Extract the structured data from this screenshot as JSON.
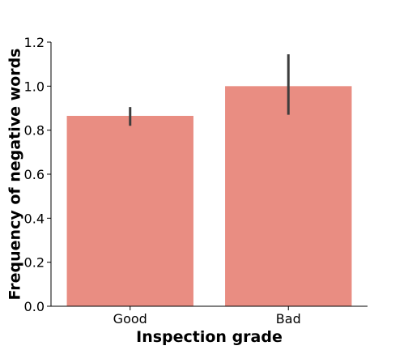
{
  "chart_data": {
    "type": "bar",
    "title": "",
    "xlabel": "Inspection grade",
    "ylabel": "Frequency of negative words",
    "categories": [
      "Good",
      "Bad"
    ],
    "values": [
      0.865,
      1.0
    ],
    "error_low": [
      0.82,
      0.87
    ],
    "error_high": [
      0.905,
      1.145
    ],
    "ylim": [
      0,
      1.2
    ],
    "yticks": [
      "0.0",
      "0.2",
      "0.4",
      "0.6",
      "0.8",
      "1.0",
      "1.2"
    ],
    "ytick_values": [
      0,
      0.2,
      0.4,
      0.6,
      0.8,
      1.0,
      1.2
    ],
    "grid": false,
    "legend": "none",
    "colors": {
      "bar": "#e98d82",
      "error": "#3d3d3d"
    }
  }
}
